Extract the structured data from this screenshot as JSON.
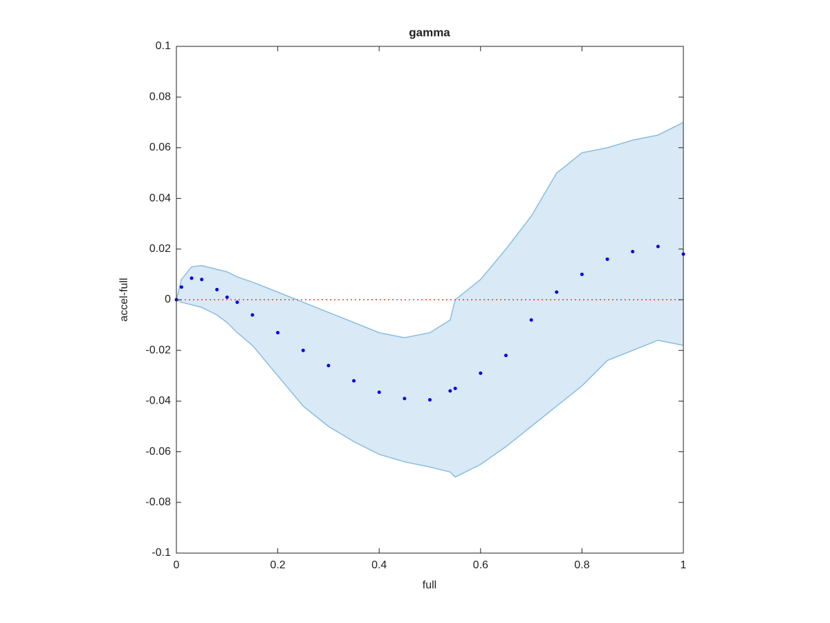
{
  "chart_data": {
    "type": "scatter",
    "title": "gamma",
    "xlabel": "full",
    "ylabel": "accel-full",
    "x": [
      0,
      0.01,
      0.03,
      0.05,
      0.08,
      0.1,
      0.12,
      0.15,
      0.2,
      0.25,
      0.3,
      0.35,
      0.4,
      0.45,
      0.5,
      0.54,
      0.55,
      0.6,
      0.65,
      0.7,
      0.75,
      0.8,
      0.85,
      0.9,
      0.95,
      1
    ],
    "values": [
      0,
      0.005,
      0.0085,
      0.008,
      0.004,
      0.001,
      -0.001,
      -0.006,
      -0.013,
      -0.02,
      -0.026,
      -0.032,
      -0.0365,
      -0.039,
      -0.0395,
      -0.036,
      -0.035,
      -0.029,
      -0.022,
      -0.008,
      0.003,
      0.01,
      0.016,
      0.019,
      0.021,
      0.018
    ],
    "upper": [
      0,
      0.008,
      0.013,
      0.0135,
      0.012,
      0.011,
      0.009,
      0.007,
      0.003,
      -0.001,
      -0.005,
      -0.009,
      -0.013,
      -0.015,
      -0.013,
      -0.008,
      0,
      0.008,
      0.02,
      0.033,
      0.05,
      0.058,
      0.06,
      0.063,
      0.065,
      0.07
    ],
    "lower": [
      0,
      -0.001,
      -0.002,
      -0.003,
      -0.006,
      -0.009,
      -0.013,
      -0.018,
      -0.03,
      -0.042,
      -0.05,
      -0.056,
      -0.061,
      -0.064,
      -0.066,
      -0.068,
      -0.07,
      -0.065,
      -0.058,
      -0.05,
      -0.042,
      -0.034,
      -0.024,
      -0.02,
      -0.016,
      -0.018
    ],
    "color": "#0000ee",
    "band_color": "#d9e9f5",
    "band_edge_color": "#88bde0",
    "hline": 0,
    "hline_color": "#ff3030",
    "xlim": [
      0,
      1
    ],
    "xticks": [
      0,
      0.2,
      0.4,
      0.6,
      0.8,
      1
    ],
    "ylim": [
      -0.1,
      0.1
    ],
    "yticks": [
      -0.1,
      -0.08,
      -0.06,
      -0.04,
      -0.02,
      0,
      0.02,
      0.04,
      0.06,
      0.08,
      0.1
    ]
  }
}
